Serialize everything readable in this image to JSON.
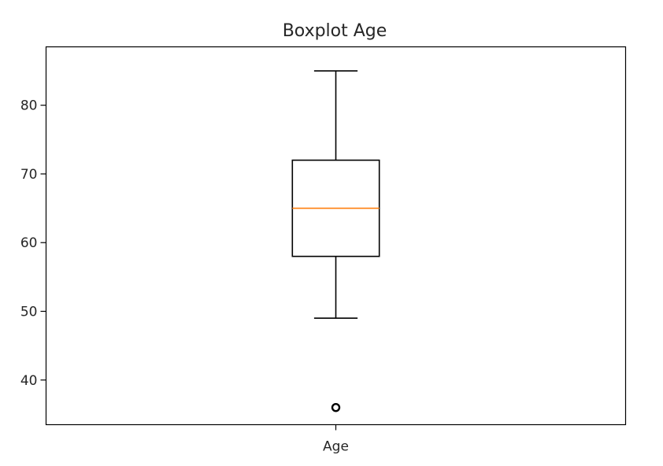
{
  "chart_data": {
    "type": "boxplot",
    "title": "Boxplot Age",
    "xlabel": "",
    "ylabel": "",
    "categories": [
      "Age"
    ],
    "ylim": [
      33.5,
      88.5
    ],
    "yticks": [
      40,
      50,
      60,
      70,
      80
    ],
    "grid": false,
    "boxes": [
      {
        "category": "Age",
        "whisker_low": 49,
        "q1": 58,
        "median": 65,
        "q3": 72,
        "whisker_high": 85,
        "outliers": [
          36
        ]
      }
    ],
    "colors": {
      "box": "#000000",
      "median": "#ff7f0e",
      "axes": "#000000",
      "text": "#262626"
    }
  }
}
